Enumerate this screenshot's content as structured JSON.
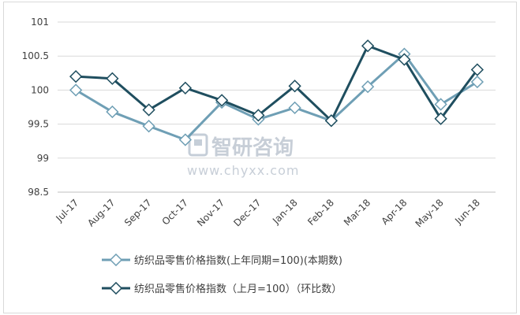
{
  "chart_data": {
    "type": "line",
    "categories": [
      "Jul-17",
      "Aug-17",
      "Sep-17",
      "Oct-17",
      "Nov-17",
      "Dec-17",
      "Jan-18",
      "Feb-18",
      "Mar-18",
      "Apr-18",
      "May-18",
      "Jun-18"
    ],
    "series": [
      {
        "name": "纺织品零售价格指数(上年同期=100)(本期数)",
        "color": "#6f9fb5",
        "values": [
          100.0,
          99.68,
          99.47,
          99.27,
          99.82,
          99.57,
          99.74,
          99.55,
          100.05,
          100.53,
          99.79,
          100.12
        ]
      },
      {
        "name": "纺织品零售价格指数（上月=100）（环比数）",
        "color": "#1f4e5f",
        "values": [
          100.2,
          100.17,
          99.71,
          100.03,
          99.85,
          99.63,
          100.06,
          99.55,
          100.65,
          100.45,
          99.58,
          100.3
        ]
      }
    ],
    "ylim": [
      98.5,
      101
    ],
    "yticks": [
      "98.5",
      "99",
      "99.5",
      "100",
      "100.5",
      "101"
    ],
    "grid": true,
    "legend_position": "bottom"
  },
  "watermark": {
    "brand": "智研咨询",
    "url": "www.chyxx.com"
  }
}
